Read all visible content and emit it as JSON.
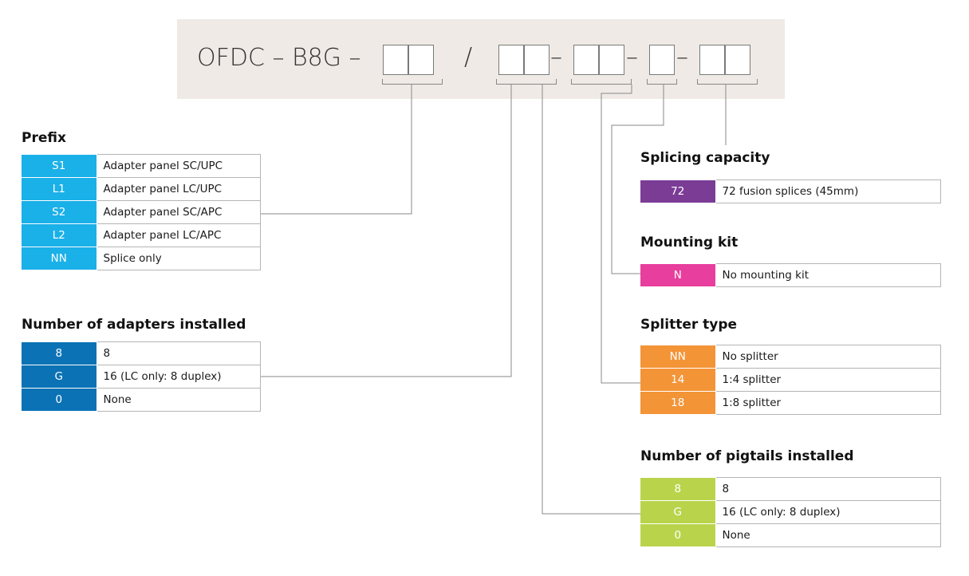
{
  "code": {
    "prefix": "OFDC – B8G –",
    "slash": "/",
    "dash": "–"
  },
  "colors": {
    "prefix": "#1ab0e8",
    "adapters": "#0b72b5",
    "splicing": "#7b3c96",
    "mounting": "#e83e9d",
    "splitter": "#f39437",
    "pigtails": "#b9d44b",
    "panel_bg": "#efeae5"
  },
  "sections": {
    "prefix": {
      "title": "Prefix",
      "rows": [
        {
          "code": "S1",
          "desc": "Adapter panel SC/UPC"
        },
        {
          "code": "L1",
          "desc": "Adapter panel LC/UPC"
        },
        {
          "code": "S2",
          "desc": "Adapter panel SC/APC"
        },
        {
          "code": "L2",
          "desc": "Adapter panel LC/APC"
        },
        {
          "code": "NN",
          "desc": "Splice only"
        }
      ]
    },
    "adapters": {
      "title": "Number of adapters installed",
      "rows": [
        {
          "code": "8",
          "desc": "8"
        },
        {
          "code": "G",
          "desc": "16 (LC only: 8 duplex)"
        },
        {
          "code": "0",
          "desc": "None"
        }
      ]
    },
    "splicing": {
      "title": "Splicing capacity",
      "rows": [
        {
          "code": "72",
          "desc": "72 fusion splices (45mm)"
        }
      ]
    },
    "mounting": {
      "title": "Mounting kit",
      "rows": [
        {
          "code": "N",
          "desc": "No mounting kit"
        }
      ]
    },
    "splitter": {
      "title": "Splitter type",
      "rows": [
        {
          "code": "NN",
          "desc": "No splitter"
        },
        {
          "code": "14",
          "desc": "1:4 splitter"
        },
        {
          "code": "18",
          "desc": "1:8 splitter"
        }
      ]
    },
    "pigtails": {
      "title": "Number of pigtails installed",
      "rows": [
        {
          "code": "8",
          "desc": "8"
        },
        {
          "code": "G",
          "desc": "16 (LC only: 8 duplex)"
        },
        {
          "code": "0",
          "desc": "None"
        }
      ]
    }
  }
}
